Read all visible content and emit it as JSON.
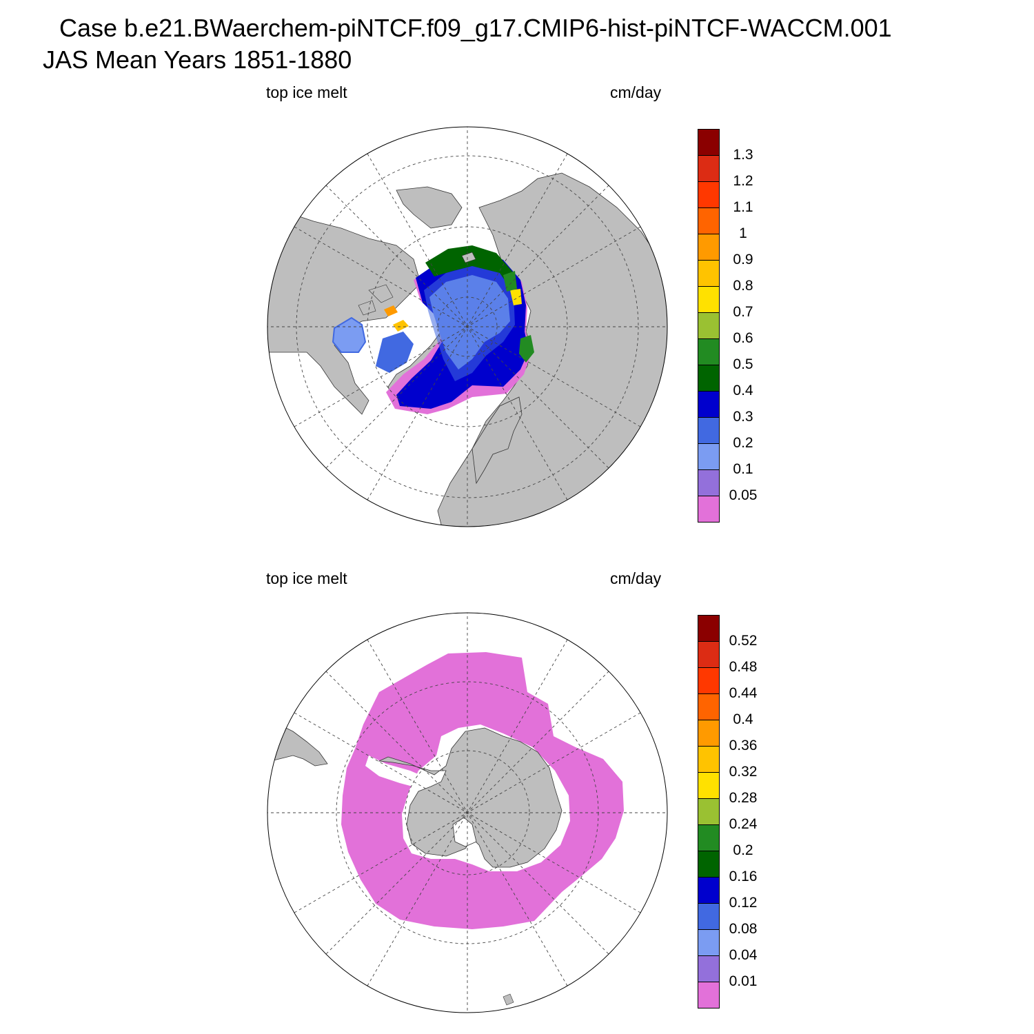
{
  "title": {
    "line1": "Case b.e21.BWaerchem-piNTCF.f09_g17.CMIP6-hist-piNTCF-WACCM.001",
    "line2": "JAS Mean   Years 1851-1880"
  },
  "panels": [
    {
      "hemisphere": "north",
      "variable_label": "top ice melt",
      "units_label": "cm/day",
      "colorbar": {
        "levels": [
          "0.05",
          "0.1",
          "0.2",
          "0.3",
          "0.4",
          "0.5",
          "0.6",
          "0.7",
          "0.8",
          "0.9",
          "1",
          "1.1",
          "1.2",
          "1.3"
        ],
        "colors": [
          "#e271d9",
          "#9370db",
          "#7b9cf2",
          "#4169e1",
          "#0000cd",
          "#006400",
          "#228b22",
          "#9ac132",
          "#ffe100",
          "#ffc300",
          "#ff9a00",
          "#ff6400",
          "#ff3800",
          "#dc2c14",
          "#8b0000"
        ]
      }
    },
    {
      "hemisphere": "south",
      "variable_label": "top ice melt",
      "units_label": "cm/day",
      "colorbar": {
        "levels": [
          "0.01",
          "0.04",
          "0.08",
          "0.12",
          "0.16",
          "0.2",
          "0.24",
          "0.28",
          "0.32",
          "0.36",
          "0.4",
          "0.44",
          "0.48",
          "0.52"
        ],
        "colors": [
          "#e271d9",
          "#9370db",
          "#7b9cf2",
          "#4169e1",
          "#0000cd",
          "#006400",
          "#228b22",
          "#9ac132",
          "#ffe100",
          "#ffc300",
          "#ff9a00",
          "#ff6400",
          "#ff3800",
          "#dc2c14",
          "#8b0000"
        ]
      }
    }
  ],
  "colors": {
    "land": "#bebebe",
    "ocean": "#ffffff",
    "no_melt_ice": "#e271d9"
  }
}
